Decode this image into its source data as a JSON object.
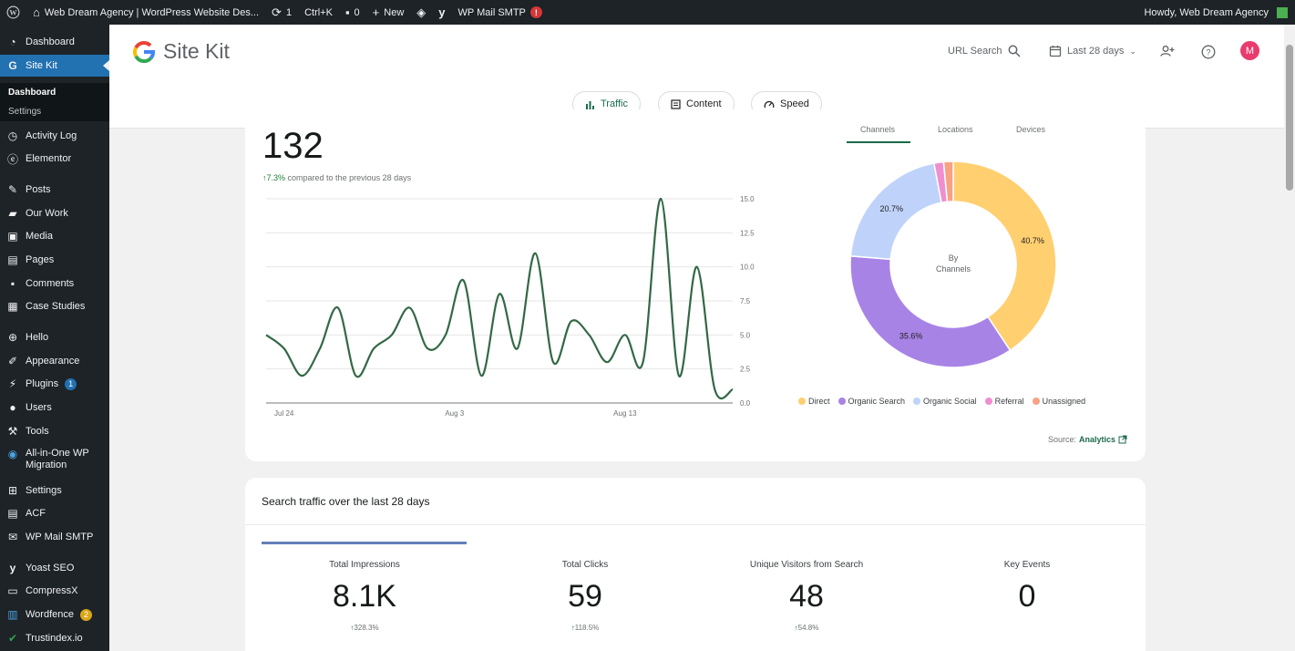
{
  "adminbar": {
    "site_name": "Web Dream Agency | WordPress Website Des...",
    "updates_count": "1",
    "shortcut": "Ctrl+K",
    "comments_count": "0",
    "new_label": "New",
    "smtp_label": "WP Mail SMTP",
    "smtp_badge": "!",
    "howdy": "Howdy, Web Dream Agency"
  },
  "sidebar": {
    "dashboard": "Dashboard",
    "sitekit": "Site Kit",
    "sub_dashboard": "Dashboard",
    "sub_settings": "Settings",
    "activity_log": "Activity Log",
    "elementor": "Elementor",
    "posts": "Posts",
    "our_work": "Our Work",
    "media": "Media",
    "pages": "Pages",
    "comments": "Comments",
    "case_studies": "Case Studies",
    "hello": "Hello",
    "appearance": "Appearance",
    "plugins": "Plugins",
    "plugins_badge": "1",
    "users": "Users",
    "tools": "Tools",
    "aio_line1": "All-in-One WP",
    "aio_line2": "Migration",
    "settings": "Settings",
    "acf": "ACF",
    "wp_mail_smtp": "WP Mail SMTP",
    "yoast": "Yoast SEO",
    "compressx": "CompressX",
    "wordfence": "Wordfence",
    "wordfence_badge": "2",
    "trustindex": "Trustindex.io"
  },
  "header": {
    "title": "Site Kit",
    "url_search": "URL Search",
    "date_range": "Last 28 days",
    "avatar_letter": "M",
    "pills": {
      "traffic": "Traffic",
      "content": "Content",
      "speed": "Speed"
    }
  },
  "traffic_card": {
    "big_number": "132",
    "change": "7.3%",
    "compare_text": "compared to the previous 28 days",
    "tabs": {
      "channels": "Channels",
      "locations": "Locations",
      "devices": "Devices"
    },
    "donut_center_1": "By",
    "donut_center_2": "Channels",
    "source_label": "Source:",
    "source_link": "Analytics"
  },
  "chart_data": [
    {
      "type": "line",
      "x_tick_labels": [
        "Jul 24",
        "Aug 3",
        "Aug 13"
      ],
      "y_ticks": [
        "0.0",
        "2.5",
        "5.0",
        "7.5",
        "10.0",
        "12.5",
        "15.0"
      ],
      "ylim": [
        0,
        15
      ],
      "grid": true,
      "values": [
        5,
        4,
        2,
        4,
        7,
        2,
        4,
        5,
        7,
        4,
        5,
        9,
        2,
        8,
        4,
        11,
        3,
        6,
        5,
        3,
        5,
        3,
        15,
        2,
        10,
        1,
        1
      ],
      "color": "#336846"
    },
    {
      "type": "pie",
      "slices": [
        {
          "name": "Direct",
          "value": 40.7,
          "label": "40.7%",
          "color": "#ffcf70"
        },
        {
          "name": "Organic Search",
          "value": 35.6,
          "label": "35.6%",
          "color": "#a883e6"
        },
        {
          "name": "Organic Social",
          "value": 20.7,
          "label": "20.7%",
          "color": "#bfd3fa"
        },
        {
          "name": "Referral",
          "value": 1.5,
          "label": "",
          "color": "#ef8fcf"
        },
        {
          "name": "Unassigned",
          "value": 1.5,
          "label": "",
          "color": "#f7a283"
        }
      ],
      "legend": "bottom"
    }
  ],
  "search_card": {
    "title": "Search traffic over the last 28 days",
    "metrics": [
      {
        "label": "Total Impressions",
        "value": "8.1K",
        "change": "328.3%"
      },
      {
        "label": "Total Clicks",
        "value": "59",
        "change": "118.5%"
      },
      {
        "label": "Unique Visitors from Search",
        "value": "48",
        "change": "54.8%"
      },
      {
        "label": "Key Events",
        "value": "0",
        "change": ""
      }
    ]
  },
  "colors": {
    "accent_green": "#1a6b4a",
    "wp_blue": "#2271b1",
    "admin_dark": "#1d2327"
  }
}
